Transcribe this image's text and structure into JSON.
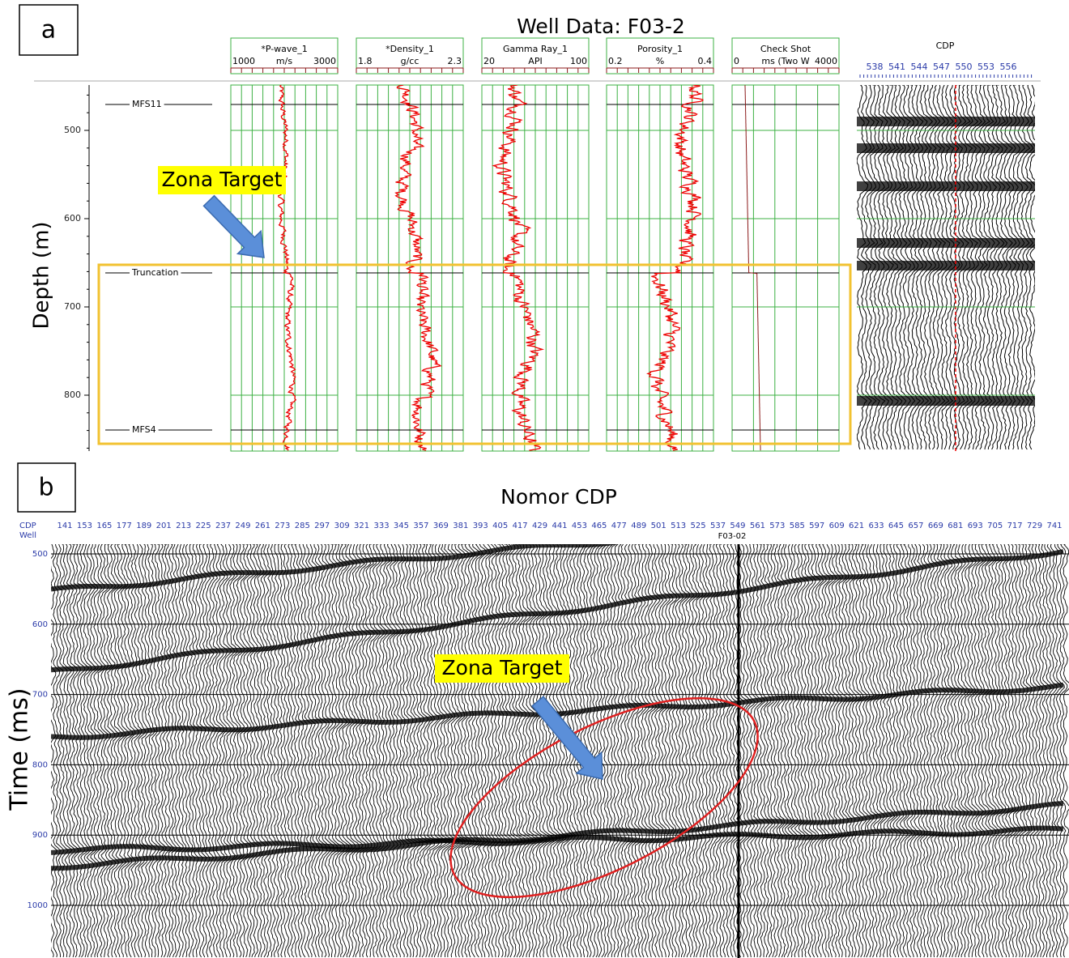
{
  "panel_a": {
    "label": "a",
    "title": "Well Data: F03-2",
    "y_axis_label": "Depth (m)",
    "depth_ticks": [
      500,
      600,
      700,
      800
    ],
    "horizons": [
      "MFS11",
      "Truncation",
      "MFS4"
    ],
    "tracks": [
      {
        "name": "*P-wave_1",
        "min": 1000,
        "unit": "m/s",
        "max": 3000
      },
      {
        "name": "*Density_1",
        "min": 1.8,
        "unit": "g/cc",
        "max": 2.3
      },
      {
        "name": "Gamma Ray_1",
        "min": 20,
        "unit": "API",
        "max": 100
      },
      {
        "name": "Porosity_1",
        "min": 0.2,
        "unit": "%",
        "max": 0.4
      },
      {
        "name": "Check Shot",
        "min": 0,
        "unit": "ms (Two W",
        "max": 4000
      }
    ],
    "seismic_title": "CDP",
    "cdp_ticks": [
      538,
      541,
      544,
      547,
      550,
      553,
      556
    ],
    "annotation": "Zona Target"
  },
  "panel_b": {
    "label": "b",
    "title": "Nomor CDP",
    "y_axis_label": "Time (ms)",
    "cdp_label": "CDP",
    "well_label": "Well",
    "well_name": "F03-02",
    "cdp_ticks": [
      141,
      153,
      165,
      177,
      189,
      201,
      213,
      225,
      237,
      249,
      261,
      273,
      285,
      297,
      309,
      321,
      333,
      345,
      357,
      369,
      381,
      393,
      405,
      417,
      429,
      441,
      453,
      465,
      477,
      489,
      501,
      513,
      525,
      537,
      549,
      561,
      573,
      585,
      597,
      609,
      621,
      633,
      645,
      657,
      669,
      681,
      693,
      705,
      717,
      729,
      741
    ],
    "time_ticks": [
      500,
      600,
      700,
      800,
      900,
      1000
    ],
    "annotation": "Zona Target"
  }
}
